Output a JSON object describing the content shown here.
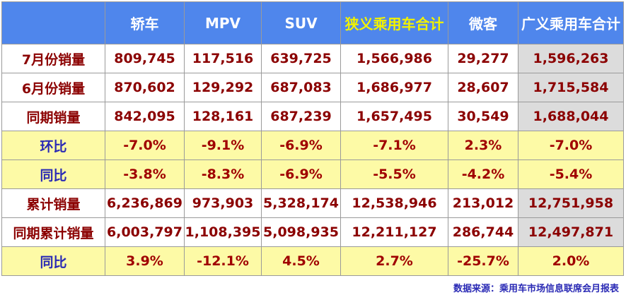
{
  "table": {
    "headers": [
      "",
      "轿车",
      "MPV",
      "SUV",
      "狭义乘用车合计",
      "微客",
      "广义乘用车合计"
    ],
    "rows": [
      [
        "7月份销量",
        "809,745",
        "117,516",
        "639,725",
        "1,566,986",
        "29,277",
        "1,596,263"
      ],
      [
        "6月份销量",
        "870,602",
        "129,292",
        "687,083",
        "1,686,977",
        "28,607",
        "1,715,584"
      ],
      [
        "同期销量",
        "842,095",
        "128,161",
        "687,239",
        "1,657,495",
        "30,549",
        "1,688,044"
      ],
      [
        "环比",
        "-7.0%",
        "-9.1%",
        "-6.9%",
        "-7.1%",
        "2.3%",
        "-7.0%"
      ],
      [
        "同比",
        "-3.8%",
        "-8.3%",
        "-6.9%",
        "-5.5%",
        "-4.2%",
        "-5.4%"
      ],
      [
        "累计销量",
        "6,236,869",
        "973,903",
        "5,328,174",
        "12,538,946",
        "213,012",
        "12,751,958"
      ],
      [
        "同期累计销量",
        "6,003,797",
        "1,108,395",
        "5,098,935",
        "12,211,127",
        "286,744",
        "12,497,871"
      ],
      [
        "同比",
        "3.9%",
        "-12.1%",
        "4.5%",
        "2.7%",
        "-25.7%",
        "2.0%"
      ]
    ]
  },
  "source": "数据来源：乘用车市场信息联席会月报表",
  "colors": {
    "header_bg": "#4f86ec",
    "header_text": "#ffffff",
    "header_highlight_text": "#f2f200",
    "value_text": "#8b0000",
    "ratio_label_text": "#2a2ab5",
    "ratio_row_bg": "#fdfaa6",
    "total_column_bg": "#dcdcdc"
  }
}
